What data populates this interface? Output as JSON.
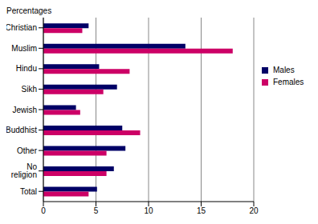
{
  "chart_data": {
    "type": "bar",
    "orientation": "horizontal",
    "xlabel": "Percentages",
    "categories": [
      "Christian",
      "Muslim",
      "Hindu",
      "Sikh",
      "Jewish",
      "Buddhist",
      "Other",
      "No religion",
      "Total"
    ],
    "series": [
      {
        "name": "Males",
        "color": "#000066",
        "values": [
          4.3,
          13.5,
          5.3,
          7.0,
          3.1,
          7.5,
          7.8,
          6.7,
          5.1
        ]
      },
      {
        "name": "Females",
        "color": "#cc0066",
        "values": [
          3.7,
          18.0,
          8.2,
          5.7,
          3.5,
          9.2,
          6.0,
          6.0,
          4.3
        ]
      }
    ],
    "xlim": [
      0,
      20
    ],
    "xticks": [
      0,
      5,
      10,
      15,
      20
    ],
    "grid": true,
    "legend": "right"
  }
}
